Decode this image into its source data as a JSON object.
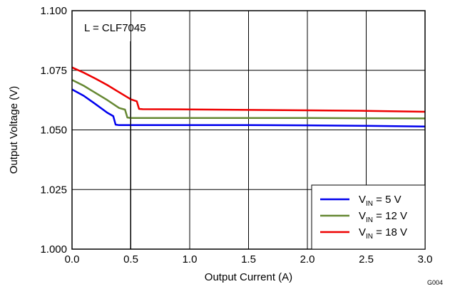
{
  "chart_data": {
    "type": "line",
    "xlabel": "Output Current (A)",
    "ylabel": "Output Voltage (V)",
    "xlim": [
      0,
      3
    ],
    "ylim": [
      1.0,
      1.1
    ],
    "xticks": [
      "0.0",
      "0.5",
      "1.0",
      "1.5",
      "2.0",
      "2.5",
      "3.0"
    ],
    "yticks": [
      "1.000",
      "1.025",
      "1.050",
      "1.075",
      "1.100"
    ],
    "grid": true,
    "legend_position": "bottom-right",
    "annotation": "L = CLF7045",
    "footer_code": "G004",
    "series": [
      {
        "name": "V_IN = 5 V",
        "legend": {
          "base": "V",
          "sub": "IN",
          "rest": " = 5 V"
        },
        "color": "#0000ee",
        "x": [
          0.0,
          0.1,
          0.2,
          0.3,
          0.35,
          0.37,
          0.4,
          0.5,
          1.0,
          1.5,
          2.0,
          2.5,
          3.0
        ],
        "y": [
          1.067,
          1.0643,
          1.0608,
          1.0572,
          1.0558,
          1.0522,
          1.052,
          1.052,
          1.052,
          1.052,
          1.0519,
          1.0517,
          1.0514
        ]
      },
      {
        "name": "V_IN = 12 V",
        "legend": {
          "base": "V",
          "sub": "IN",
          "rest": " = 12 V"
        },
        "color": "#668833",
        "x": [
          0.0,
          0.1,
          0.2,
          0.3,
          0.4,
          0.45,
          0.47,
          0.5,
          1.0,
          1.5,
          2.0,
          2.5,
          3.0
        ],
        "y": [
          1.071,
          1.0685,
          1.0655,
          1.0625,
          1.0592,
          1.0585,
          1.0552,
          1.055,
          1.055,
          1.055,
          1.055,
          1.0549,
          1.0548
        ]
      },
      {
        "name": "V_IN = 18 V",
        "legend": {
          "base": "V",
          "sub": "IN",
          "rest": " = 18 V"
        },
        "color": "#ee0000",
        "x": [
          0.0,
          0.1,
          0.2,
          0.3,
          0.4,
          0.5,
          0.55,
          0.57,
          0.6,
          1.0,
          1.5,
          2.0,
          2.5,
          3.0
        ],
        "y": [
          1.0762,
          1.074,
          1.0715,
          1.0688,
          1.0658,
          1.0628,
          1.062,
          1.0588,
          1.0587,
          1.0586,
          1.0584,
          1.0582,
          1.058,
          1.0576
        ]
      }
    ]
  }
}
